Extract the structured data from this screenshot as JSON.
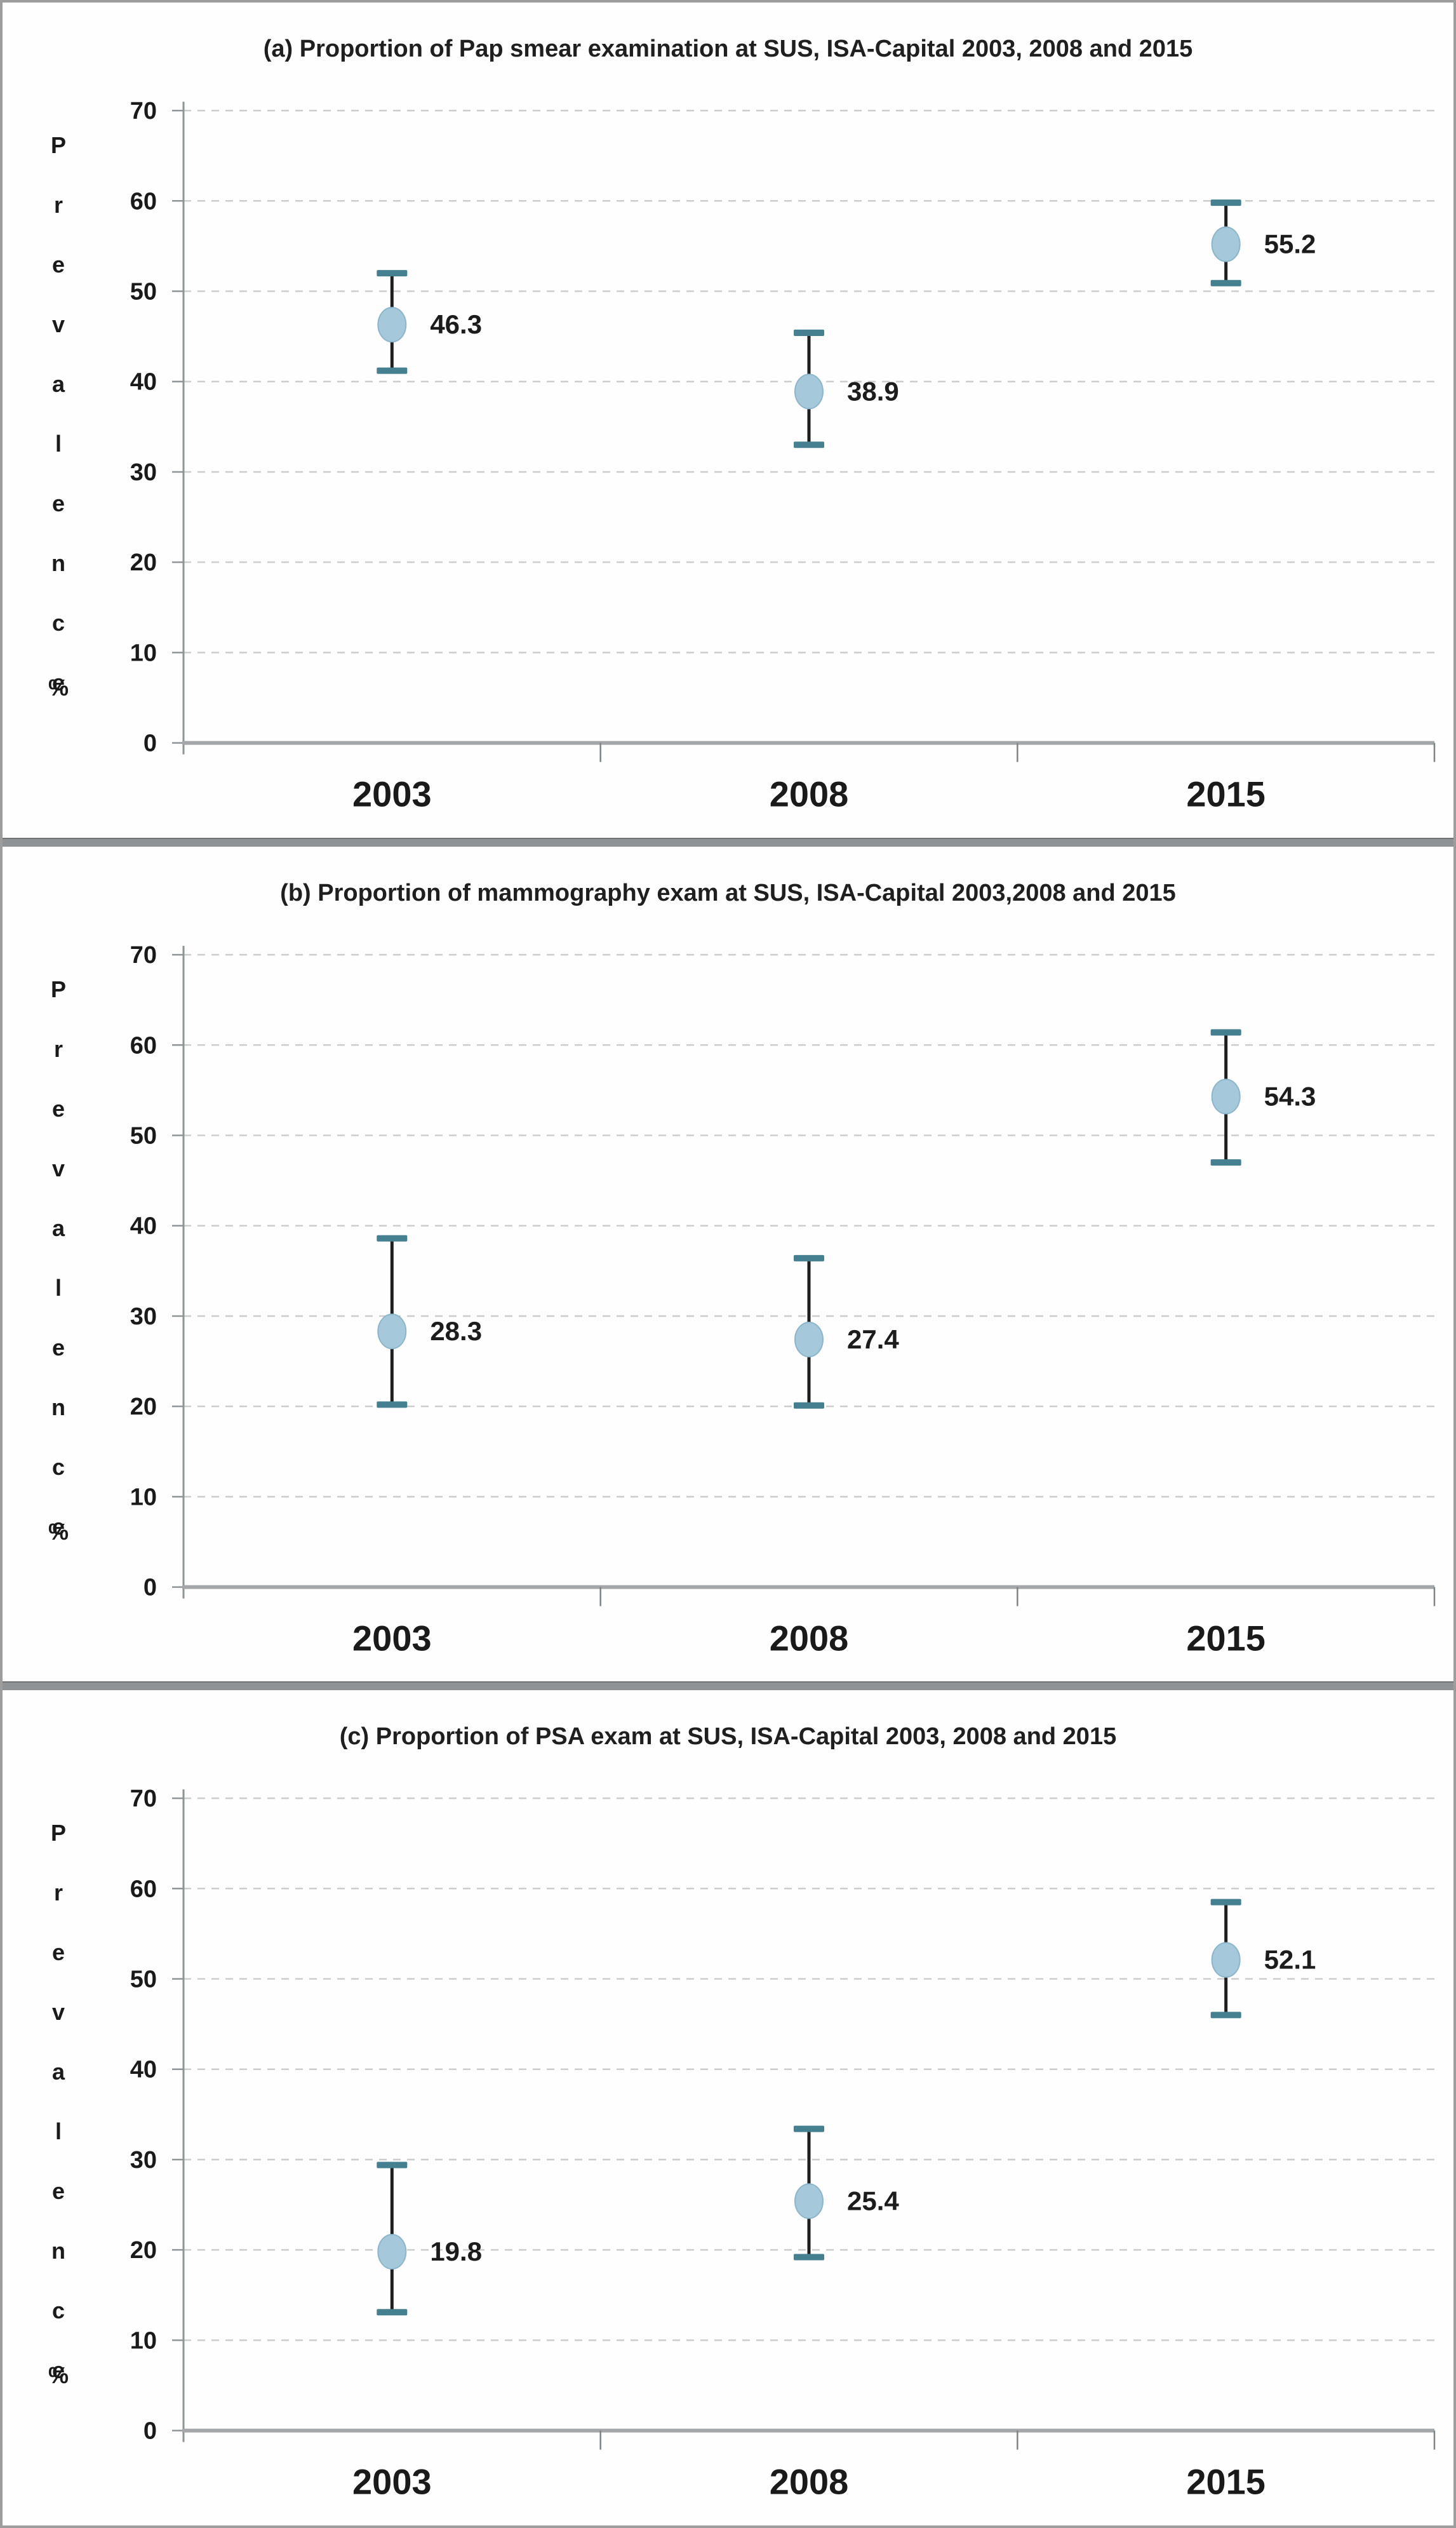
{
  "figure": {
    "y_axis_letters": "P\nr\ne\nv\na\nl\ne\nn\nc\ne",
    "y_axis_unit": "%"
  },
  "colors": {
    "background": "#fefefe",
    "page_border": "#9d9d9d",
    "separator": "#8f9396",
    "marker_fill": "#a5c8db",
    "marker_stroke": "#8db6cb",
    "error_line": "#1f1f1f",
    "cap": "#44808f",
    "grid": "#cdcdcd",
    "y_axis": "#8f9497",
    "x_axis": "#a4a7a9",
    "tick": "#7e8487",
    "text": "#1a1a1a",
    "value_label": "#1c1c1c"
  },
  "chart_data": [
    {
      "type": "scatter",
      "subtype": "point-with-error-bars",
      "panel": "(a)",
      "title": "(a) Proportion of Pap smear examination at SUS, ISA-Capital 2003, 2008 and 2015",
      "categories": [
        "2003",
        "2008",
        "2015"
      ],
      "values": [
        46.3,
        38.9,
        55.2
      ],
      "ci_low": [
        41.2,
        33.0,
        50.9
      ],
      "ci_high": [
        52.0,
        45.4,
        59.8
      ],
      "value_labels": [
        "46.3",
        "38.9",
        "55.2"
      ],
      "ylabel": "Prevalence %",
      "xlabel": "",
      "yticks": [
        0,
        10,
        20,
        30,
        40,
        50,
        60,
        70
      ],
      "ylim": [
        0,
        70
      ],
      "grid": "horizontal-dashed",
      "legend": "none"
    },
    {
      "type": "scatter",
      "subtype": "point-with-error-bars",
      "panel": "(b)",
      "title": "(b) Proportion of mammography exam at SUS, ISA-Capital 2003,2008 and 2015",
      "categories": [
        "2003",
        "2008",
        "2015"
      ],
      "values": [
        28.3,
        27.4,
        54.3
      ],
      "ci_low": [
        20.2,
        20.1,
        47.0
      ],
      "ci_high": [
        38.6,
        36.4,
        61.4
      ],
      "value_labels": [
        "28.3",
        "27.4",
        "54.3"
      ],
      "ylabel": "Prevalence %",
      "xlabel": "",
      "yticks": [
        0,
        10,
        20,
        30,
        40,
        50,
        60,
        70
      ],
      "ylim": [
        0,
        70
      ],
      "grid": "horizontal-dashed",
      "legend": "none"
    },
    {
      "type": "scatter",
      "subtype": "point-with-error-bars",
      "panel": "(c)",
      "title": "(c) Proportion of PSA exam at SUS, ISA-Capital 2003, 2008 and 2015",
      "categories": [
        "2003",
        "2008",
        "2015"
      ],
      "values": [
        19.8,
        25.4,
        52.1
      ],
      "ci_low": [
        13.1,
        19.2,
        46.0
      ],
      "ci_high": [
        29.4,
        33.4,
        58.5
      ],
      "value_labels": [
        "19.8",
        "25.4",
        "52.1"
      ],
      "ylabel": "Prevalence %",
      "xlabel": "",
      "yticks": [
        0,
        10,
        20,
        30,
        40,
        50,
        60,
        70
      ],
      "ylim": [
        0,
        70
      ],
      "grid": "horizontal-dashed",
      "legend": "none"
    }
  ]
}
